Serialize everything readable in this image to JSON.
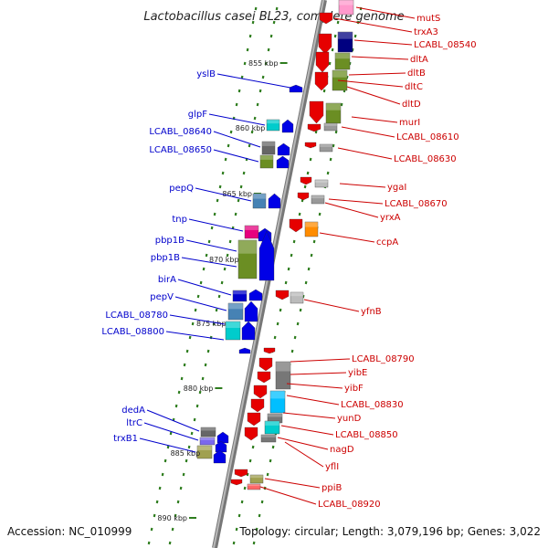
{
  "title": "Lactobacillus casei BL23, complete genome",
  "footer": {
    "accession": "Accession: NC_010999",
    "summary": "Topology: circular; Length: 3,079,196 bp; Genes: 3,022"
  },
  "colors": {
    "backbone": "#8a8a8a",
    "ticks": "#2e7d1e",
    "left_label": "#0000cc",
    "right_label": "#cc0000",
    "forward_arrow": "#0000e6",
    "reverse_arrow": "#e60000"
  },
  "ruler": [
    {
      "label": "855 kbp"
    },
    {
      "label": "860 kbp"
    },
    {
      "label": "865 kbp"
    },
    {
      "label": "870 kbp"
    },
    {
      "label": "875 kbp"
    },
    {
      "label": "880 kbp"
    },
    {
      "label": "885 kbp"
    },
    {
      "label": "890 kbp"
    }
  ],
  "genes_left": [
    "yslB",
    "glpF",
    "LCABL_08640",
    "LCABL_08650",
    "pepQ",
    "tnp",
    "pbp1B",
    "pbp1B",
    "birA",
    "pepV",
    "LCABL_08780",
    "LCABL_08800",
    "dedA",
    "ltrC",
    "trxB1"
  ],
  "genes_right": [
    "mutS",
    "trxA3",
    "LCABL_08540",
    "dltA",
    "dltB",
    "dltC",
    "dltD",
    "murI",
    "LCABL_08610",
    "LCABL_08630",
    "ygaI",
    "LCABL_08670",
    "yrxA",
    "ccpA",
    "yfnB",
    "LCABL_08790",
    "yibE",
    "yibF",
    "LCABL_08830",
    "yunD",
    "LCABL_08850",
    "nagD",
    "yflI",
    "ppiB",
    "LCABL_08920"
  ]
}
